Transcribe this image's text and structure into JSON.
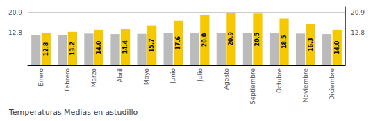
{
  "chart_data": {
    "type": "bar",
    "title": "Temperaturas Medias en astudillo",
    "categories": [
      "Enero",
      "Febrero",
      "Marzo",
      "Abril",
      "Mayo",
      "Junio",
      "Julio",
      "Agosto",
      "Septiembre",
      "Octubre",
      "Noviembre",
      "Diciembre"
    ],
    "series": [
      {
        "color": "#BBBBBB",
        "values": [
          11.8,
          12.0,
          12.5,
          12.3,
          12.4,
          12.7,
          12.8,
          12.8,
          12.8,
          12.8,
          12.5,
          12.3
        ]
      },
      {
        "color": "#F5C800",
        "values": [
          12.8,
          13.2,
          14.0,
          14.4,
          15.7,
          17.6,
          20.0,
          20.9,
          20.5,
          18.5,
          16.3,
          14.0
        ],
        "data_labels": true,
        "value_labels": [
          "12.8",
          "13.2",
          "14.0",
          "14.4",
          "15.7",
          "17.6",
          "20.0",
          "20.9",
          "20.5",
          "18.5",
          "16.3",
          "14.0"
        ]
      }
    ],
    "ylim": [
      0,
      23.0
    ],
    "yticks": [
      12.8,
      20.9
    ],
    "y2lim": [
      0,
      23.0
    ],
    "y2ticks": [
      12.8,
      20.9
    ],
    "grid": true
  }
}
